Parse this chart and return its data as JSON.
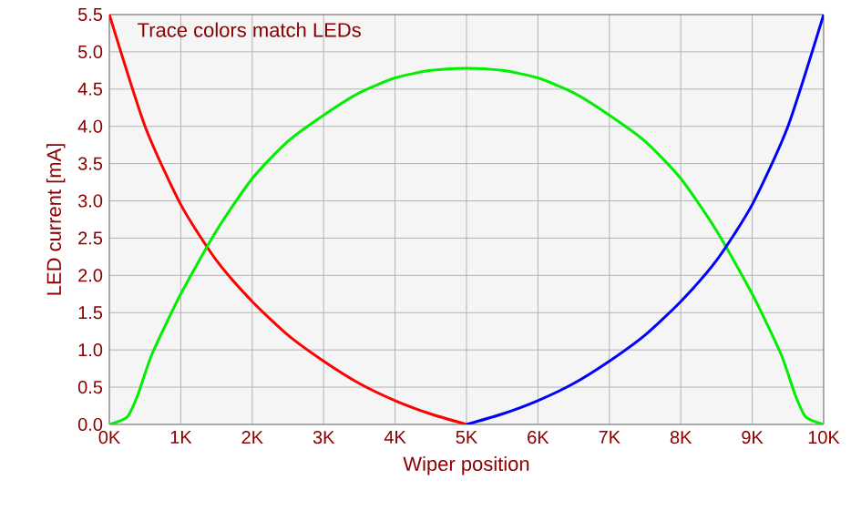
{
  "chart_data": {
    "type": "line",
    "title": "Trace colors match LEDs",
    "xlabel": "Wiper position",
    "ylabel": "LED current [mA]",
    "xlim": [
      0,
      10
    ],
    "ylim": [
      0,
      5.5
    ],
    "xticks": [
      {
        "value": 0,
        "label": "0K"
      },
      {
        "value": 1,
        "label": "1K"
      },
      {
        "value": 2,
        "label": "2K"
      },
      {
        "value": 3,
        "label": "3K"
      },
      {
        "value": 4,
        "label": "4K"
      },
      {
        "value": 5,
        "label": "5K"
      },
      {
        "value": 6,
        "label": "6K"
      },
      {
        "value": 7,
        "label": "7K"
      },
      {
        "value": 8,
        "label": "8K"
      },
      {
        "value": 9,
        "label": "9K"
      },
      {
        "value": 10,
        "label": "10K"
      }
    ],
    "yticks": [
      {
        "value": 0,
        "label": "0.0"
      },
      {
        "value": 0.5,
        "label": "0.5"
      },
      {
        "value": 1,
        "label": "1.0"
      },
      {
        "value": 1.5,
        "label": "1.5"
      },
      {
        "value": 2,
        "label": "2.0"
      },
      {
        "value": 2.5,
        "label": "2.5"
      },
      {
        "value": 3,
        "label": "3.0"
      },
      {
        "value": 3.5,
        "label": "3.5"
      },
      {
        "value": 4,
        "label": "4.0"
      },
      {
        "value": 4.5,
        "label": "4.5"
      },
      {
        "value": 5,
        "label": "5.0"
      },
      {
        "value": 5.5,
        "label": "5.5"
      }
    ],
    "grid": true,
    "marker": "none",
    "line_style": "solid",
    "series": [
      {
        "color": "#ff0000",
        "x": [
          0,
          0.5,
          1,
          1.5,
          2,
          2.5,
          3,
          3.5,
          4,
          4.5,
          5
        ],
        "values": [
          5.5,
          4.0,
          2.95,
          2.2,
          1.65,
          1.2,
          0.85,
          0.55,
          0.32,
          0.14,
          0
        ]
      },
      {
        "color": "#00ee00",
        "x": [
          0,
          0.25,
          0.4,
          0.6,
          1,
          1.5,
          2,
          2.5,
          3,
          3.5,
          4,
          4.5,
          5,
          5.5,
          6,
          6.5,
          7,
          7.5,
          8,
          8.5,
          9,
          9.4,
          9.6,
          9.75,
          10
        ],
        "values": [
          0,
          0.1,
          0.4,
          0.95,
          1.75,
          2.6,
          3.3,
          3.8,
          4.15,
          4.45,
          4.65,
          4.75,
          4.78,
          4.75,
          4.65,
          4.45,
          4.15,
          3.8,
          3.3,
          2.6,
          1.75,
          0.95,
          0.4,
          0.1,
          0
        ]
      },
      {
        "color": "#0000ff",
        "x": [
          5,
          5.5,
          6,
          6.5,
          7,
          7.5,
          8,
          8.5,
          9,
          9.5,
          10
        ],
        "values": [
          0,
          0.14,
          0.32,
          0.55,
          0.85,
          1.2,
          1.65,
          2.2,
          2.95,
          4.0,
          5.5
        ]
      }
    ]
  }
}
